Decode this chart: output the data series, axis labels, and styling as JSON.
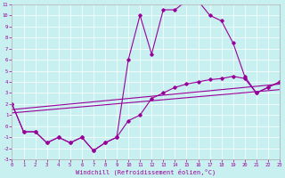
{
  "xlabel": "Windchill (Refroidissement éolien,°C)",
  "background_color": "#c8f0f0",
  "grid_color": "#ffffff",
  "line_color": "#990099",
  "xlim": [
    0,
    23
  ],
  "ylim": [
    -3,
    11
  ],
  "xticks": [
    0,
    1,
    2,
    3,
    4,
    5,
    6,
    7,
    8,
    9,
    10,
    11,
    12,
    13,
    14,
    15,
    16,
    17,
    18,
    19,
    20,
    21,
    22,
    23
  ],
  "yticks": [
    -3,
    -2,
    -1,
    0,
    1,
    2,
    3,
    4,
    5,
    6,
    7,
    8,
    9,
    10,
    11
  ],
  "line1_x": [
    0,
    1,
    2,
    3,
    4,
    5,
    6,
    7,
    8,
    9,
    10,
    11,
    12,
    13,
    14,
    15,
    16,
    17,
    18,
    19,
    20,
    21,
    22,
    23
  ],
  "line1_y": [
    2,
    -0.5,
    -0.5,
    -1.5,
    -1,
    -1.5,
    -1,
    -2.2,
    -1.5,
    -1,
    6,
    10,
    6.5,
    10.5,
    10.5,
    11.3,
    11.3,
    10,
    9.5,
    7.5,
    4.5,
    3,
    3.5,
    4
  ],
  "line2_x": [
    0,
    1,
    2,
    3,
    4,
    5,
    6,
    7,
    8,
    9,
    10,
    11,
    12,
    13,
    14,
    15,
    16,
    17,
    18,
    19,
    20,
    21,
    22,
    23
  ],
  "line2_y": [
    2,
    -0.5,
    -0.5,
    -1.5,
    -1,
    -1.5,
    -1,
    -2.2,
    -1.5,
    -1,
    0.5,
    1.0,
    2.5,
    3.0,
    3.5,
    3.8,
    4.0,
    4.2,
    4.3,
    4.5,
    4.3,
    3.0,
    3.5,
    4.0
  ],
  "line3_x": [
    0,
    23
  ],
  "line3_y": [
    1.5,
    3.8
  ],
  "line4_x": [
    0,
    23
  ],
  "line4_y": [
    1.2,
    3.3
  ]
}
